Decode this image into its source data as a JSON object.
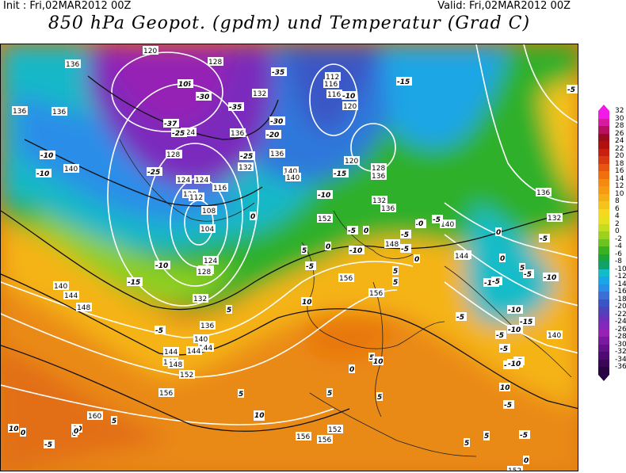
{
  "header": {
    "init": "Init : Fri,02MAR2012 00Z",
    "valid": "Valid: Fri,02MAR2012 00Z",
    "title": "850 hPa Geopot. (gpdm) und Temperatur (Grad C)"
  },
  "legend": {
    "values": [
      "32",
      "30",
      "28",
      "26",
      "24",
      "22",
      "20",
      "18",
      "16",
      "14",
      "12",
      "10",
      "8",
      "6",
      "4",
      "2",
      "0",
      "-2",
      "-4",
      "-6",
      "-8",
      "-10",
      "-12",
      "-14",
      "-16",
      "-18",
      "-20",
      "-22",
      "-24",
      "-26",
      "-28",
      "-30",
      "-32",
      "-34",
      "-36"
    ],
    "colors": [
      "#f21ae6",
      "#d81aa0",
      "#b81060",
      "#9a0a20",
      "#b01010",
      "#c82010",
      "#d83a10",
      "#e85510",
      "#f07010",
      "#f58a10",
      "#f59a12",
      "#f5ae16",
      "#f5c41c",
      "#f5d820",
      "#e5e11e",
      "#c6dc1e",
      "#9ed11f",
      "#6cc21e",
      "#3ab21f",
      "#1aa53a",
      "#11a26c",
      "#12bcc8",
      "#1aa6e6",
      "#2a8ee8",
      "#3a70d6",
      "#3a56c6",
      "#5042b8",
      "#6a32b8",
      "#8228ba",
      "#9622b5",
      "#7a18a0",
      "#641088",
      "#4e0a72",
      "#3a0658",
      "#2a0442"
    ]
  },
  "map": {
    "geopotential_labels": [
      "136",
      "120",
      "128",
      "136",
      "128",
      "132",
      "136",
      "112",
      "120",
      "116",
      "116",
      "120",
      "124",
      "128",
      "132",
      "136",
      "124",
      "128",
      "136",
      "140",
      "144",
      "140",
      "152",
      "124",
      "120",
      "112",
      "116",
      "108",
      "104",
      "124",
      "128",
      "132",
      "136",
      "140",
      "144",
      "148",
      "148",
      "152",
      "140",
      "144",
      "148",
      "156",
      "156",
      "152",
      "148",
      "144",
      "140",
      "136",
      "132",
      "136",
      "128",
      "144",
      "140",
      "136",
      "132",
      "156",
      "160",
      "156",
      "156",
      "152",
      "152",
      "144",
      "140"
    ],
    "temperature_labels": [
      "-35",
      "-30",
      "-25",
      "-35",
      "-37",
      "-35",
      "-30",
      "-25",
      "-25",
      "-20",
      "-15",
      "-10",
      "-5",
      "-10",
      "-10",
      "-15",
      "-10",
      "-5",
      "0",
      "5",
      "-10",
      "-15",
      "-5",
      "0",
      "5",
      "-5",
      "0",
      "-5",
      "-10",
      "-5",
      "0",
      "5",
      "10",
      "5",
      "0",
      "-5",
      "-10",
      "-5",
      "-10",
      "-15",
      "-10",
      "-5",
      "0",
      "5",
      "10",
      "5",
      "0",
      "-5",
      "-10",
      "-5",
      "-5",
      "-10",
      "-5",
      "-10",
      "-5",
      "-5",
      "0",
      "5",
      "10",
      "5",
      "10",
      "-5",
      "-5",
      "0",
      "5",
      "10",
      "10",
      "5",
      "0",
      "-5",
      "5",
      "0",
      "10",
      "0",
      "5",
      "-5",
      "5",
      "10"
    ]
  }
}
